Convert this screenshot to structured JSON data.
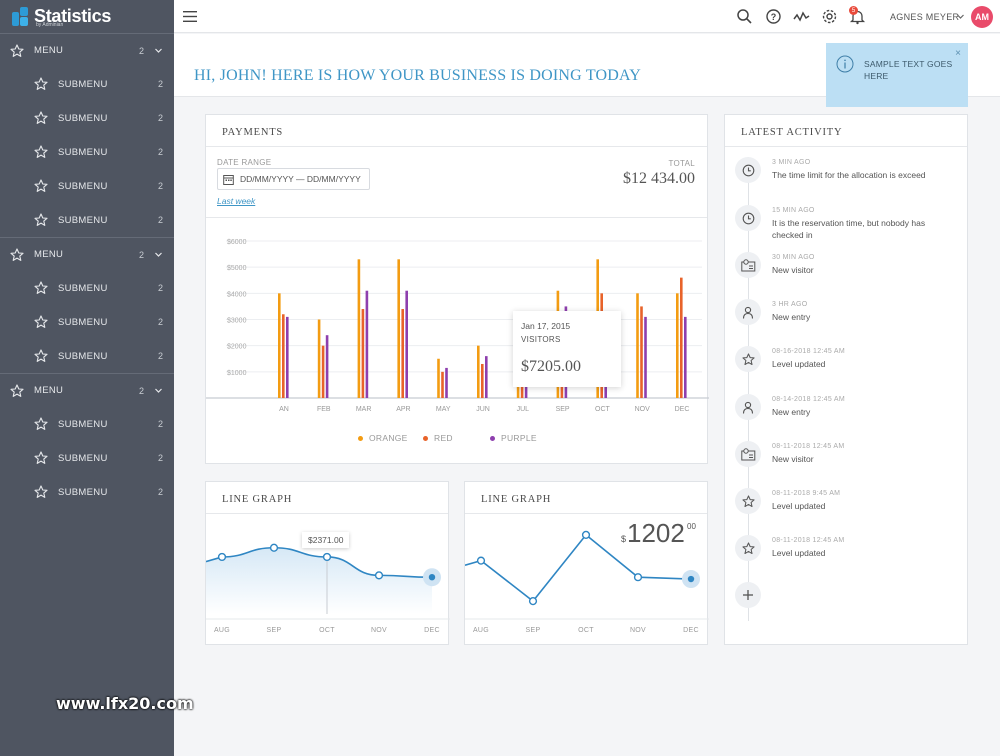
{
  "app": {
    "title": "Statistics",
    "subtitle": "by Adminian"
  },
  "sidebar": {
    "groups": [
      {
        "label": "MENU",
        "count": "2",
        "items": [
          {
            "label": "SUBMENU",
            "count": "2"
          },
          {
            "label": "SUBMENU",
            "count": "2"
          },
          {
            "label": "SUBMENU",
            "count": "2"
          },
          {
            "label": "SUBMENU",
            "count": "2"
          },
          {
            "label": "SUBMENU",
            "count": "2"
          }
        ]
      },
      {
        "label": "MENU",
        "count": "2",
        "items": [
          {
            "label": "SUBMENU",
            "count": "2"
          },
          {
            "label": "SUBMENU",
            "count": "2"
          },
          {
            "label": "SUBMENU",
            "count": "2"
          }
        ]
      },
      {
        "label": "MENU",
        "count": "2",
        "items": [
          {
            "label": "SUBMENU",
            "count": "2"
          },
          {
            "label": "SUBMENU",
            "count": "2"
          },
          {
            "label": "SUBMENU",
            "count": "2"
          }
        ]
      }
    ]
  },
  "topbar": {
    "icons": [
      "menu-icon",
      "search-icon",
      "help-icon",
      "activity-icon",
      "settings-icon",
      "bell-icon"
    ],
    "notification_count": "5",
    "user_name": "AGNES MEYER",
    "avatar_initials": "AM"
  },
  "greeting": "HI, JOHN! HERE IS HOW YOUR BUSINESS IS DOING TODAY",
  "notice": {
    "text": "SAMPLE TEXT GOES HERE",
    "close": "×"
  },
  "payments": {
    "title": "PAYMENTS",
    "date_range_label": "DATE RANGE",
    "date_range_value": "DD/MM/YYYY — DD/MM/YYYY",
    "last_week": "Last week",
    "total_label": "TOTAL",
    "total_value": "$12 434.00",
    "tooltip": {
      "date": "Jan 17, 2015",
      "label": "VISITORS",
      "value": "$7205.00"
    }
  },
  "line_graph_1": {
    "title": "LINE GRAPH",
    "tooltip": "$2371.00"
  },
  "line_graph_2": {
    "title": "LINE GRAPH",
    "currency": "$",
    "big_value": "1202",
    "cents": "00"
  },
  "activity": {
    "title": "LATEST ACTIVITY",
    "items": [
      {
        "icon": "clock-icon",
        "time": "3 MIN AGO",
        "text": "The time limit for the allocation is exceed"
      },
      {
        "icon": "clock-icon",
        "time": "15 MIN AGO",
        "text": "It is the reservation time, but nobody has checked in"
      },
      {
        "icon": "visitor-icon",
        "time": "30 MIN AGO",
        "text": "New visitor"
      },
      {
        "icon": "person-icon",
        "time": "3 HR AGO",
        "text": "New entry"
      },
      {
        "icon": "star-icon",
        "time": "08-16-2018 12:45 AM",
        "text": "Level updated"
      },
      {
        "icon": "person-icon",
        "time": "08-14-2018 12:45 AM",
        "text": "New entry"
      },
      {
        "icon": "visitor-icon",
        "time": "08-11-2018 12:45 AM",
        "text": "New visitor"
      },
      {
        "icon": "star-icon",
        "time": "08-11-2018 9:45 AM",
        "text": "Level updated"
      },
      {
        "icon": "star-icon",
        "time": "08-11-2018 12:45 AM",
        "text": "Level updated"
      }
    ]
  },
  "colors": {
    "orange": "#f39c12",
    "red": "#e8632a",
    "purple": "#8e3fae",
    "accent": "#3f96c6",
    "line": "#2f86c3"
  },
  "watermark": "www.lfx20.com",
  "chart_data": [
    {
      "type": "bar",
      "categories": [
        "AN",
        "FEB",
        "MAR",
        "APR",
        "MAY",
        "JUN",
        "JUL",
        "SEP",
        "OCT",
        "NOV",
        "DEC"
      ],
      "series": [
        {
          "name": "ORANGE",
          "values": [
            4000,
            3000,
            5300,
            5300,
            1500,
            2000,
            3300,
            4100,
            5300,
            4000,
            4000
          ]
        },
        {
          "name": "RED",
          "values": [
            3200,
            2000,
            3400,
            3400,
            1000,
            1300,
            2300,
            3200,
            4000,
            3500,
            4600
          ]
        },
        {
          "name": "PURPLE",
          "values": [
            3100,
            2400,
            4100,
            4100,
            1150,
            1600,
            2600,
            3500,
            3100,
            3100,
            3100
          ]
        }
      ],
      "yticks": [
        "$6000",
        "$5000",
        "$4000",
        "$3000",
        "$2000",
        "$1000"
      ],
      "ylim": [
        0,
        6000
      ],
      "legend": "bottom"
    },
    {
      "type": "line",
      "x": [
        "AUG",
        "SEP",
        "OCT",
        "NOV",
        "DEC"
      ],
      "values": [
        0.62,
        0.72,
        0.62,
        0.42,
        0.4
      ],
      "highlight_label": "$2371.00"
    },
    {
      "type": "line",
      "x": [
        "AUG",
        "SEP",
        "OCT",
        "NOV",
        "DEC"
      ],
      "values": [
        0.58,
        0.14,
        0.86,
        0.4,
        0.38
      ]
    }
  ]
}
